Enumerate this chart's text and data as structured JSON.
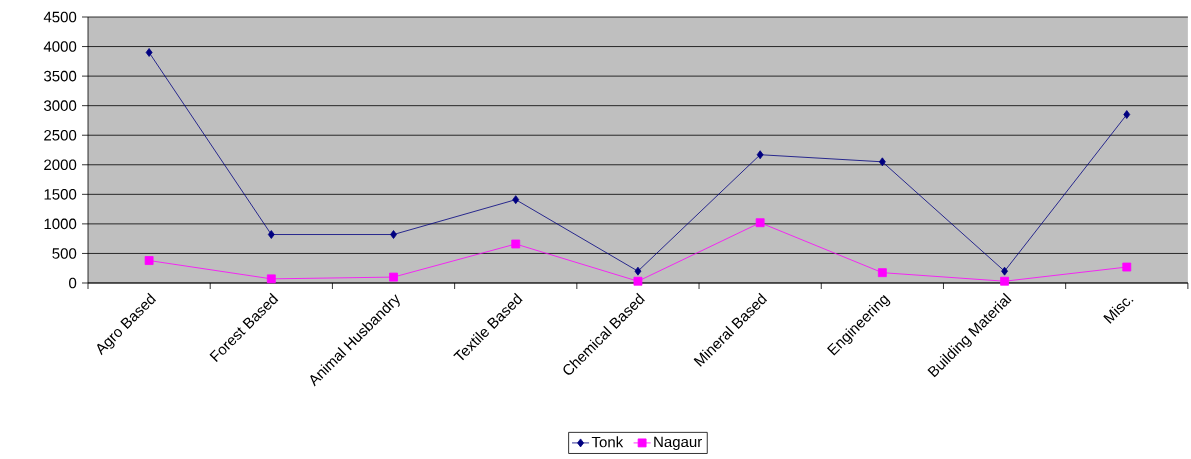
{
  "chart_data": {
    "type": "line",
    "categories": [
      "Agro Based",
      "Forest Based",
      "Animal Husbandry",
      "Textile Based",
      "Chemical Based",
      "Mineral Based",
      "Engineering",
      "Building Material",
      "Misc."
    ],
    "series": [
      {
        "name": "Tonk",
        "color": "#000080",
        "marker": "diamond",
        "values": [
          3900,
          820,
          820,
          1410,
          200,
          2170,
          2050,
          200,
          2850
        ]
      },
      {
        "name": "Nagaur",
        "color": "#ff00ff",
        "marker": "square",
        "values": [
          380,
          70,
          100,
          660,
          30,
          1020,
          175,
          30,
          270
        ]
      }
    ],
    "ylim": [
      0,
      4500
    ],
    "yticks": [
      0,
      500,
      1000,
      1500,
      2000,
      2500,
      3000,
      3500,
      4000,
      4500
    ],
    "grid": "y",
    "legend": "bottom",
    "line_style": "solid"
  }
}
